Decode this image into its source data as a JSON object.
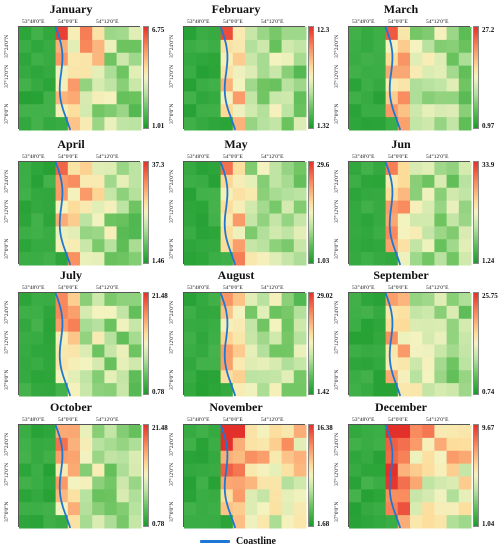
{
  "colors": {
    "coastline": "#1f77d4",
    "low": "#1a9a2a",
    "mid": "#f4f3c0",
    "high": "#e4302a"
  },
  "axes": {
    "lon_ticks": [
      "53°48'0\"E",
      "54°0'0\"E",
      "54°12'0\"E"
    ],
    "lat_ticks": [
      "37°24'0\"N",
      "37°12'0\"N",
      "37°0'0\"N"
    ]
  },
  "legend": {
    "label": "Coastline",
    "icon": "blue-line-icon"
  },
  "panels": [
    {
      "month": "January",
      "max": "6.75",
      "min": "1.01"
    },
    {
      "month": "February",
      "max": "12.3",
      "min": "1.32"
    },
    {
      "month": "March",
      "max": "27.2",
      "min": "0.97"
    },
    {
      "month": "April",
      "max": "37.3",
      "min": "1.46"
    },
    {
      "month": "May",
      "max": "29.6",
      "min": "1.03"
    },
    {
      "month": "Jun",
      "max": "33.9",
      "min": "1.24"
    },
    {
      "month": "July",
      "max": "21.48",
      "min": "0.78"
    },
    {
      "month": "August",
      "max": "29.02",
      "min": "1.42"
    },
    {
      "month": "September",
      "max": "25.75",
      "min": "0.74"
    },
    {
      "month": "October",
      "max": "21.48",
      "min": "0.78"
    },
    {
      "month": "November",
      "max": "16.38",
      "min": "1.68"
    },
    {
      "month": "December",
      "max": "9.67",
      "min": "1.04"
    }
  ]
}
